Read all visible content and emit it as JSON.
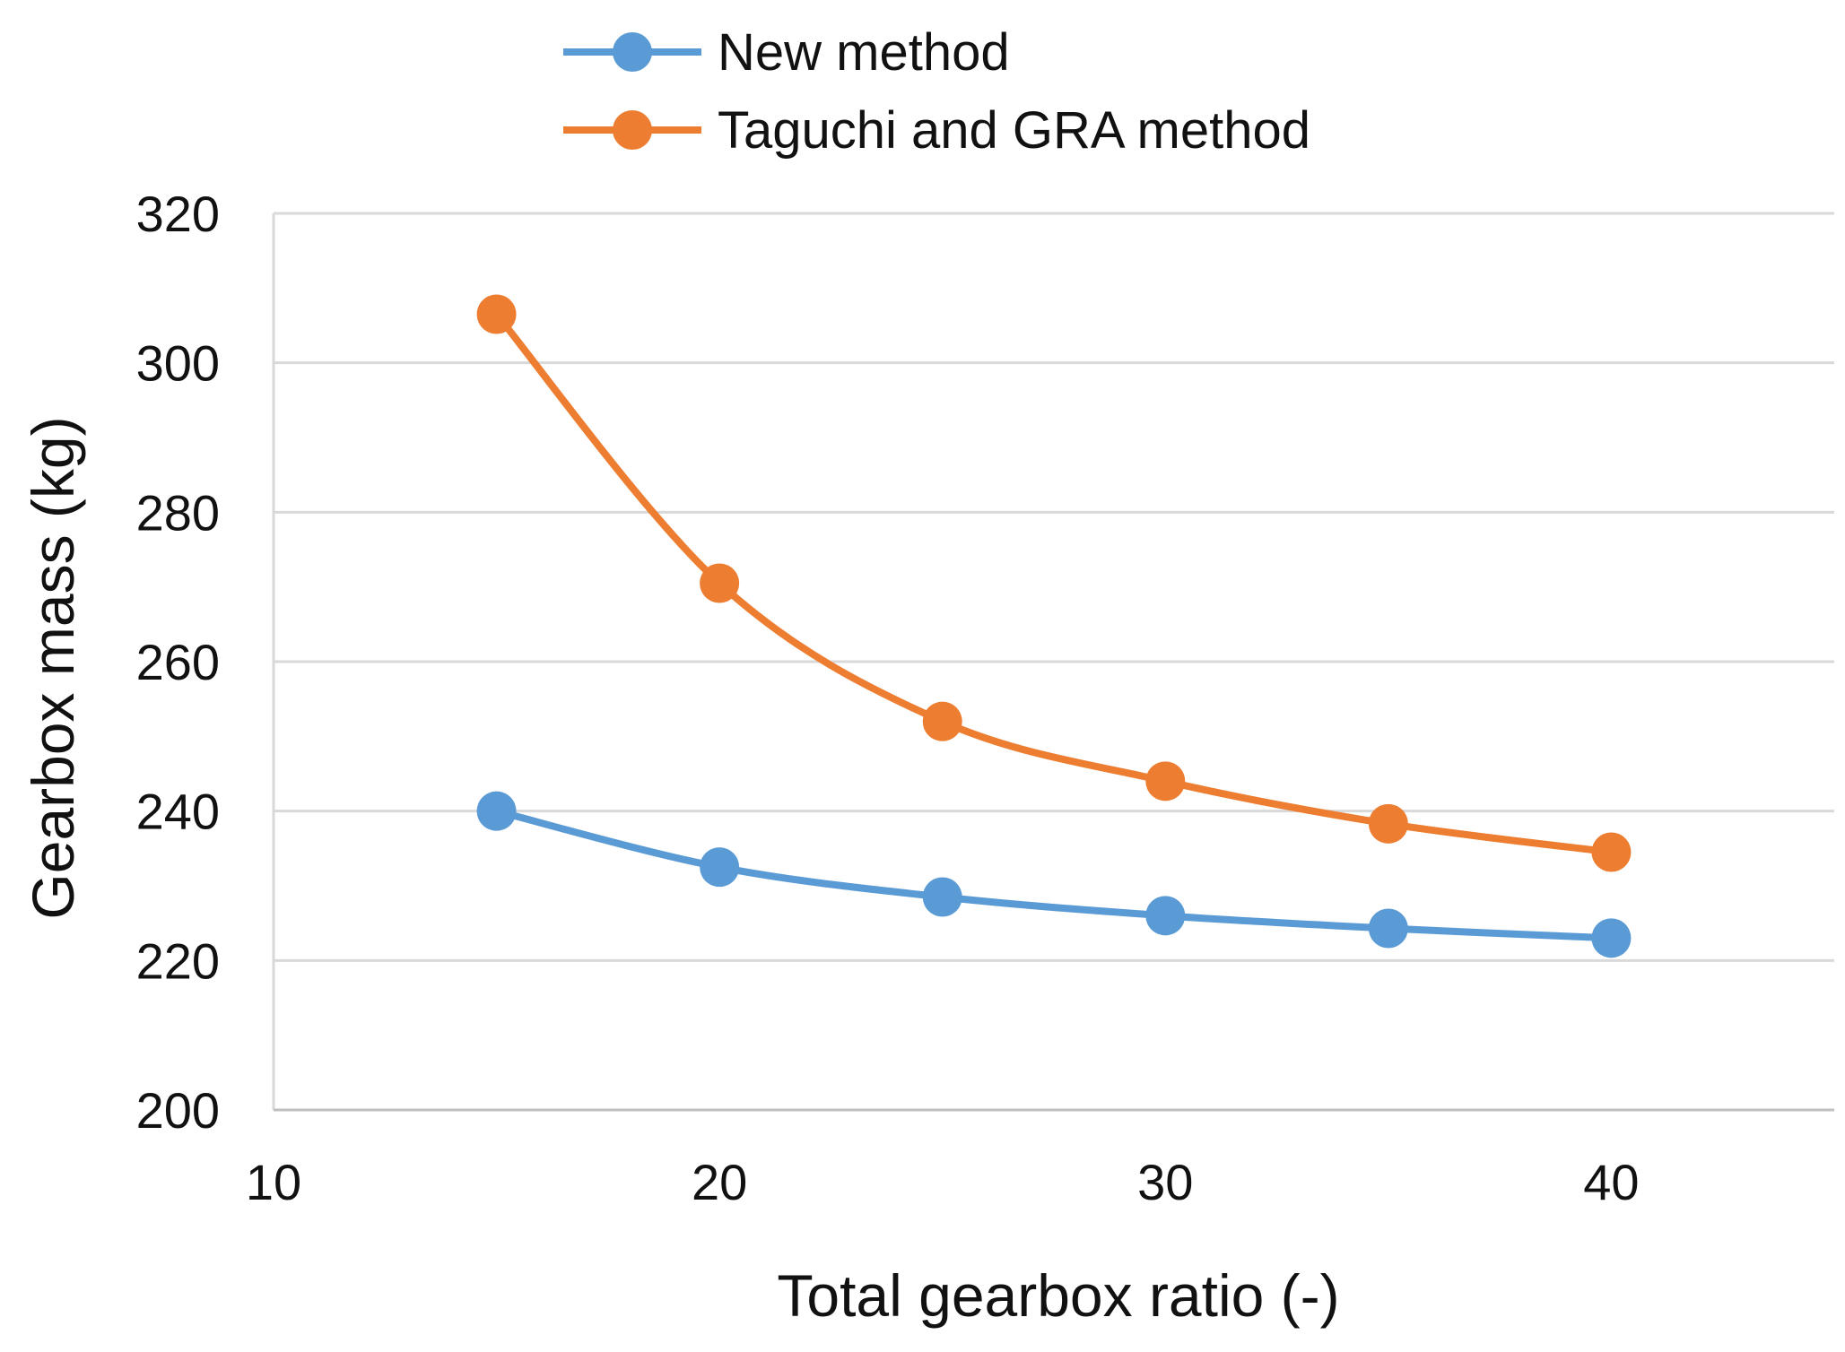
{
  "chart_data": {
    "type": "line",
    "title": "",
    "xlabel": "Total gearbox ratio (-)",
    "ylabel": "Gearbox mass (kg)",
    "xlim": [
      10,
      45
    ],
    "ylim": [
      200,
      320
    ],
    "x_ticks": [
      10,
      20,
      30,
      40
    ],
    "y_ticks": [
      200,
      220,
      240,
      260,
      280,
      300,
      320
    ],
    "grid": true,
    "legend_position": "top-center",
    "smooth": true,
    "x": [
      15,
      20,
      25,
      30,
      35,
      40
    ],
    "series": [
      {
        "name": "New method",
        "color": "#5B9BD5",
        "values": [
          240,
          232.5,
          228.5,
          226,
          224.3,
          223
        ]
      },
      {
        "name": "Taguchi and GRA method",
        "color": "#ED7D31",
        "values": [
          306.5,
          270.5,
          252,
          244,
          238.3,
          234.5
        ]
      }
    ]
  }
}
